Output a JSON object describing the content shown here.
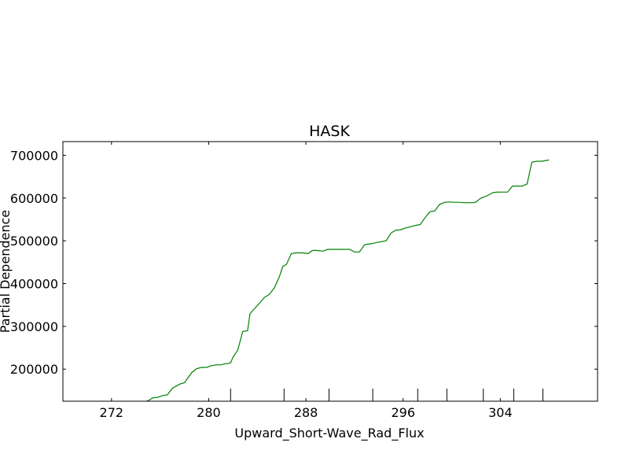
{
  "chart_data": {
    "type": "line",
    "title": "HASK",
    "xlabel": "Upward_Short-Wave_Rad_Flux",
    "ylabel": "Partial Dependence",
    "xlim": [
      268,
      312
    ],
    "ylim": [
      125000,
      732000
    ],
    "x_ticks": [
      272,
      280,
      288,
      296,
      304
    ],
    "y_ticks": [
      200000,
      300000,
      400000,
      500000,
      600000,
      700000
    ],
    "rug_x": [
      281.8,
      286.2,
      289.9,
      293.5,
      297.2,
      299.6,
      302.6,
      305.1,
      307.5
    ],
    "grid": false,
    "series": [
      {
        "color": "#008000",
        "x": [
          268.0,
          270.0,
          272.0,
          273.8,
          274.6,
          275.0,
          275.4,
          275.8,
          276.2,
          276.6,
          277.0,
          277.6,
          278.0,
          278.6,
          279.0,
          279.4,
          279.8,
          280.2,
          280.6,
          281.0,
          281.4,
          281.6,
          281.8,
          282.0,
          282.4,
          282.8,
          283.2,
          283.4,
          284.2,
          284.6,
          285.0,
          285.4,
          285.8,
          286.1,
          286.4,
          286.8,
          287.2,
          287.6,
          288.0,
          288.2,
          288.5,
          288.7,
          289.0,
          289.4,
          289.8,
          290.2,
          290.4,
          290.8,
          291.2,
          291.6,
          292.0,
          292.4,
          292.8,
          293.0,
          293.4,
          293.8,
          294.2,
          294.6,
          295.0,
          295.4,
          295.8,
          296.2,
          296.6,
          297.0,
          297.4,
          297.8,
          298.2,
          298.6,
          299.0,
          299.4,
          299.8,
          300.2,
          300.6,
          301.0,
          301.4,
          301.8,
          302.0,
          302.4,
          302.8,
          303.4,
          303.8,
          304.2,
          304.6,
          305.0,
          305.4,
          305.8,
          306.2,
          306.6,
          307.0,
          307.4,
          308.0
        ],
        "y": [
          82000,
          95000,
          105000,
          112000,
          123000,
          126000,
          133000,
          134000,
          138000,
          140000,
          155000,
          165000,
          168000,
          192000,
          201000,
          204000,
          204000,
          208000,
          210000,
          210000,
          213000,
          213000,
          215000,
          228000,
          245000,
          288000,
          290000,
          330000,
          355000,
          368000,
          375000,
          390000,
          415000,
          440000,
          445000,
          470000,
          472000,
          472000,
          471000,
          470000,
          477000,
          478000,
          477000,
          476000,
          480000,
          480000,
          480000,
          480000,
          480000,
          480000,
          474000,
          474000,
          490000,
          492000,
          493000,
          496000,
          498000,
          500000,
          518000,
          525000,
          526000,
          530000,
          533000,
          536000,
          538000,
          554000,
          568000,
          570000,
          585000,
          590000,
          591000,
          590000,
          590000,
          589000,
          589000,
          589000,
          591000,
          600000,
          604000,
          613000,
          614000,
          614000,
          614000,
          628000,
          628000,
          628000,
          633000,
          684000,
          686000,
          686000,
          689000
        ]
      }
    ]
  }
}
